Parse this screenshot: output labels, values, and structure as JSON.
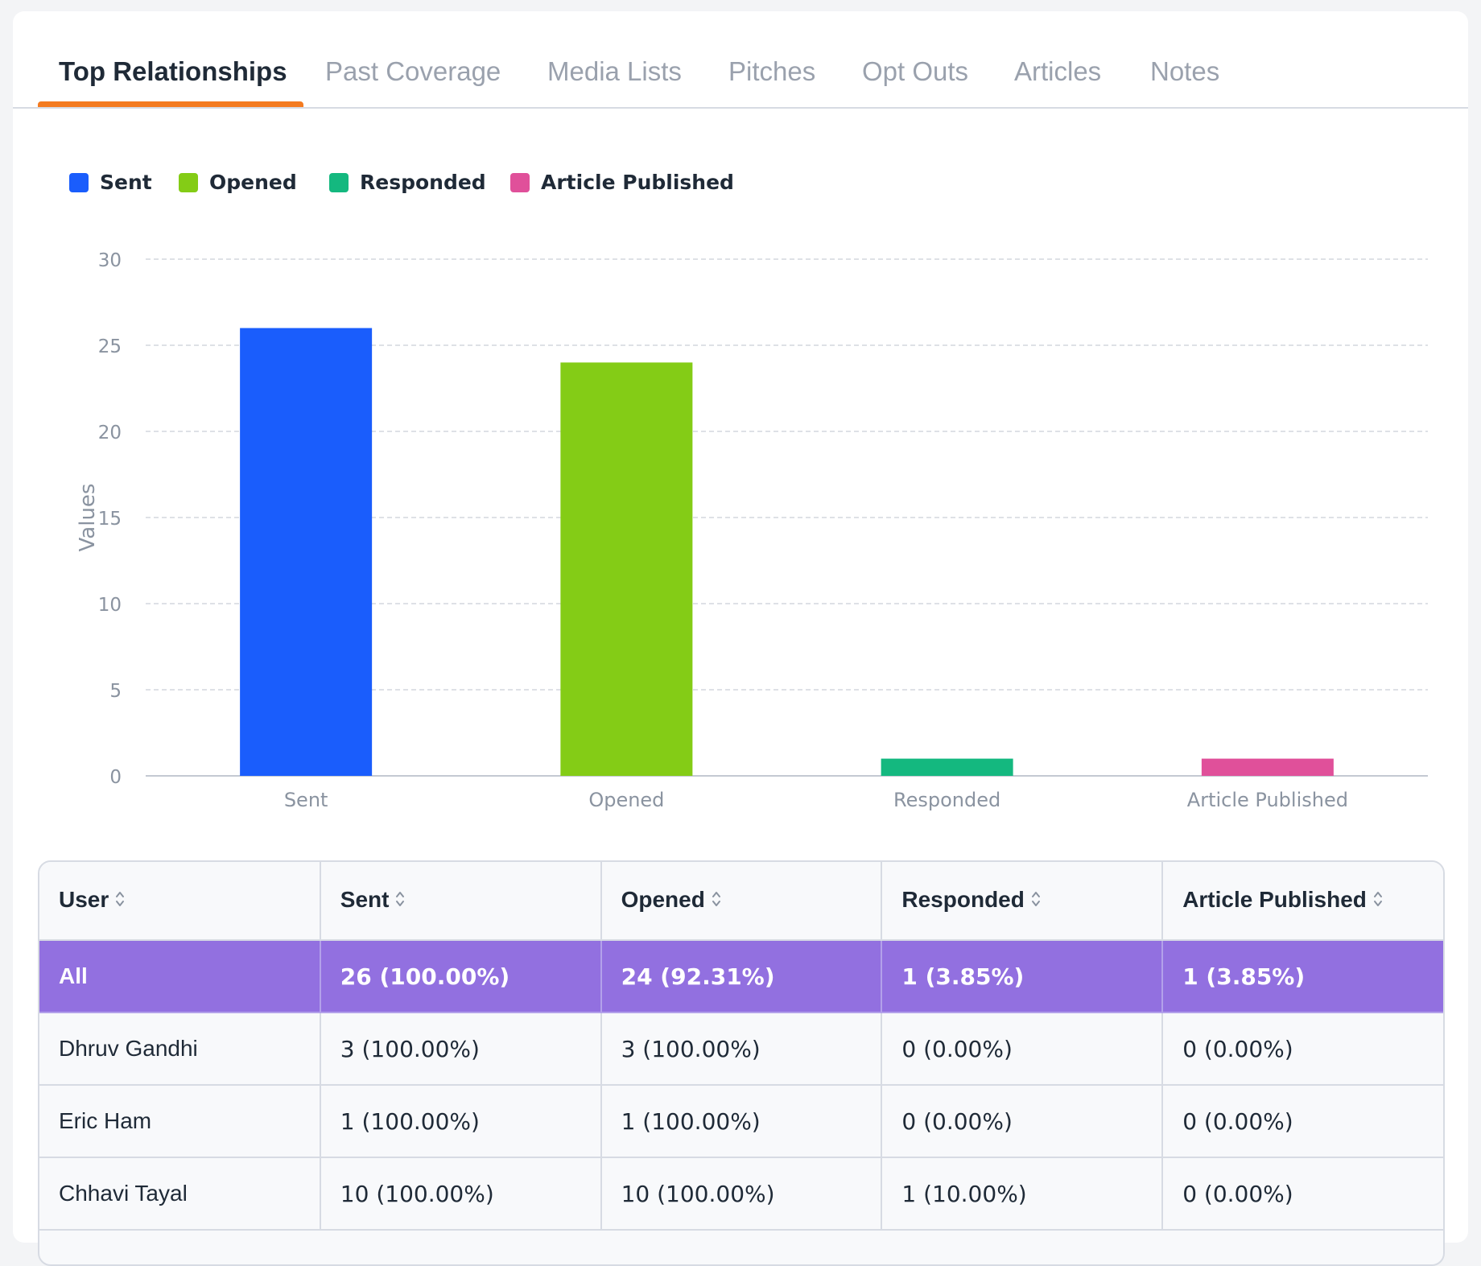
{
  "tabs": [
    {
      "label": "Top Relationships",
      "active": true
    },
    {
      "label": "Past Coverage"
    },
    {
      "label": "Media Lists"
    },
    {
      "label": "Pitches"
    },
    {
      "label": "Opt Outs"
    },
    {
      "label": "Articles"
    },
    {
      "label": "Notes"
    }
  ],
  "colors": {
    "tab_active_indicator": "#f47b20",
    "sent": "#1a5dfc",
    "opened": "#84cc16",
    "responded": "#14b87f",
    "article_published": "#e0509a",
    "all_row": "#9270e0"
  },
  "chart_data": {
    "type": "bar",
    "categories": [
      "Sent",
      "Opened",
      "Responded",
      "Article Published"
    ],
    "values": [
      26,
      24,
      1,
      1
    ],
    "colors": [
      "#1a5dfc",
      "#84cc16",
      "#14b87f",
      "#e0509a"
    ],
    "legend": [
      "Sent",
      "Opened",
      "Responded",
      "Article Published"
    ],
    "legend_position": "top-left",
    "xlabel": "",
    "ylabel": "Values",
    "ylim": [
      0,
      30
    ],
    "yticks": [
      0,
      5,
      10,
      15,
      20,
      25,
      30
    ],
    "grid": true
  },
  "table": {
    "headers": [
      "User",
      "Sent",
      "Opened",
      "Responded",
      "Article Published"
    ],
    "rows": [
      [
        "All",
        "26 (100.00%)",
        "24 (92.31%)",
        "1 (3.85%)",
        "1 (3.85%)"
      ],
      [
        "Dhruv Gandhi",
        "3 (100.00%)",
        "3 (100.00%)",
        "0 (0.00%)",
        "0 (0.00%)"
      ],
      [
        "Eric Ham",
        "1 (100.00%)",
        "1 (100.00%)",
        "0 (0.00%)",
        "0 (0.00%)"
      ],
      [
        "Chhavi Tayal",
        "10 (100.00%)",
        "10 (100.00%)",
        "1 (10.00%)",
        "0 (0.00%)"
      ]
    ]
  }
}
